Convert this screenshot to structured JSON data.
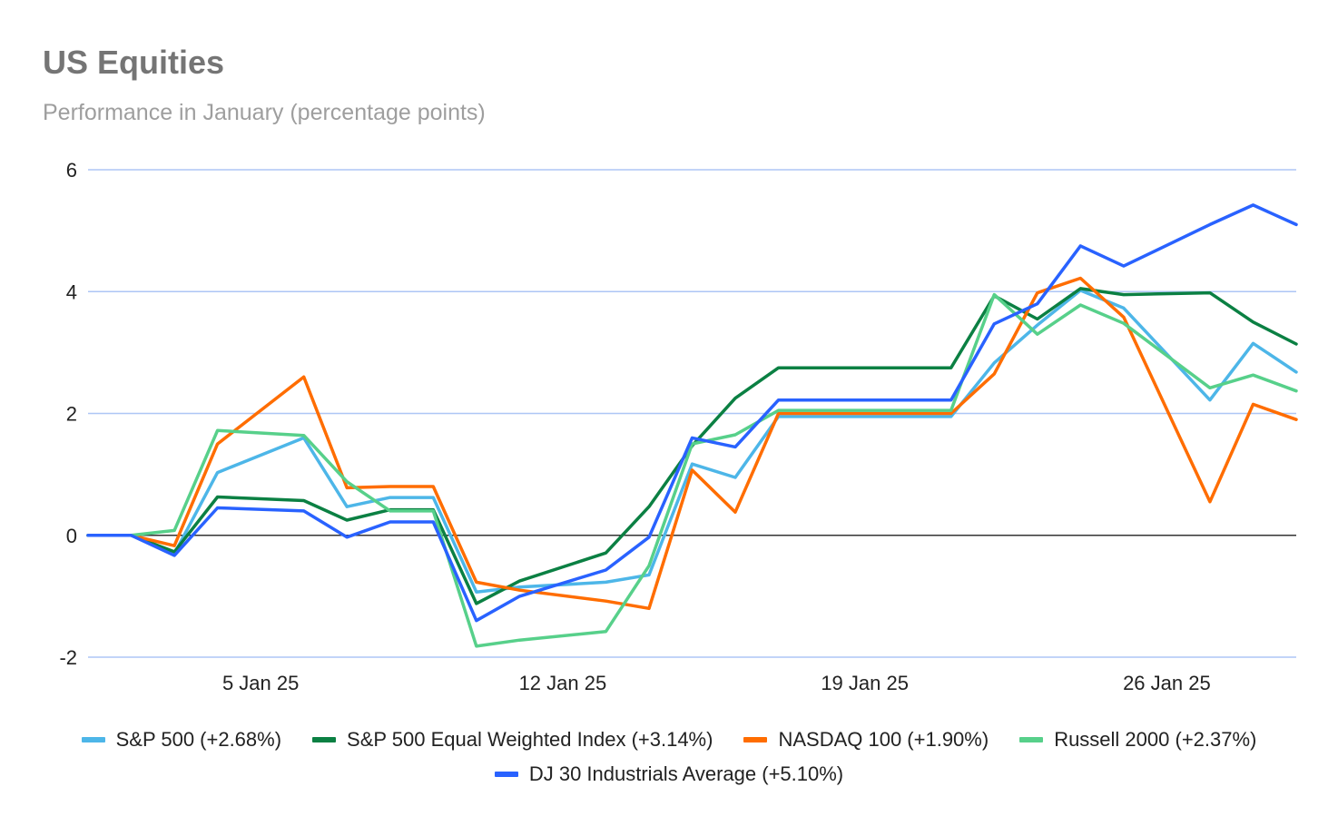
{
  "chart_data": {
    "type": "line",
    "title": "US Equities",
    "subtitle": "Performance in January (percentage points)",
    "xlabel": "",
    "ylabel": "",
    "ylim": [
      -2,
      6
    ],
    "yticks": [
      "6",
      "4",
      "2",
      "0",
      "-2"
    ],
    "x": [
      "1 Jan 25",
      "2 Jan 25",
      "3 Jan 25",
      "4 Jan 25",
      "6 Jan 25",
      "7 Jan 25",
      "8 Jan 25",
      "9 Jan 25",
      "10 Jan 25",
      "11 Jan 25",
      "13 Jan 25",
      "14 Jan 25",
      "15 Jan 25",
      "16 Jan 25",
      "17 Jan 25",
      "18 Jan 25",
      "21 Jan 25",
      "22 Jan 25",
      "23 Jan 25",
      "24 Jan 25",
      "25 Jan 25",
      "27 Jan 25",
      "28 Jan 25",
      "29 Jan 25"
    ],
    "x_day": [
      1,
      2,
      3,
      4,
      6,
      7,
      8,
      9,
      10,
      11,
      13,
      14,
      15,
      16,
      17,
      18,
      21,
      22,
      23,
      24,
      25,
      27,
      28,
      29
    ],
    "xticks": [
      {
        "label": "5 Jan 25",
        "day": 5
      },
      {
        "label": "12 Jan 25",
        "day": 12
      },
      {
        "label": "19 Jan 25",
        "day": 19
      },
      {
        "label": "26 Jan 25",
        "day": 26
      }
    ],
    "grid": true,
    "legend_position": "bottom",
    "series": [
      {
        "name": "S&P 500 (+2.68%)",
        "color": "#4db6e8",
        "values": [
          0,
          0,
          -0.3,
          1.03,
          1.6,
          0.47,
          0.62,
          0.62,
          -0.93,
          -0.85,
          -0.77,
          -0.65,
          1.17,
          0.95,
          1.95,
          1.95,
          1.95,
          2.83,
          3.45,
          4.02,
          3.73,
          2.22,
          3.15,
          2.68
        ]
      },
      {
        "name": "S&P 500 Equal Weighted Index (+3.14%)",
        "color": "#0b8043",
        "values": [
          0,
          0,
          -0.27,
          0.63,
          0.57,
          0.25,
          0.42,
          0.42,
          -1.12,
          -0.75,
          -0.29,
          0.47,
          1.47,
          2.25,
          2.75,
          2.75,
          2.75,
          3.93,
          3.55,
          4.05,
          3.95,
          3.98,
          3.5,
          3.14
        ]
      },
      {
        "name": "NASDAQ 100 (+1.90%)",
        "color": "#ff6d00",
        "values": [
          0,
          0,
          -0.17,
          1.5,
          2.6,
          0.78,
          0.8,
          0.8,
          -0.77,
          -0.9,
          -1.08,
          -1.2,
          1.07,
          0.38,
          2.0,
          2.0,
          2.0,
          2.65,
          3.98,
          4.22,
          3.58,
          0.55,
          2.15,
          1.9
        ]
      },
      {
        "name": "Russell 2000 (+2.37%)",
        "color": "#57d08a",
        "values": [
          0,
          0,
          0.08,
          1.72,
          1.64,
          0.88,
          0.4,
          0.4,
          -1.82,
          -1.72,
          -1.58,
          -0.5,
          1.5,
          1.65,
          2.05,
          2.05,
          2.05,
          3.95,
          3.3,
          3.78,
          3.48,
          2.42,
          2.63,
          2.37
        ]
      },
      {
        "name": "DJ 30 Industrials Average (+5.10%)",
        "color": "#2962ff",
        "values": [
          0,
          0,
          -0.33,
          0.45,
          0.4,
          -0.03,
          0.22,
          0.22,
          -1.4,
          -1.0,
          -0.57,
          -0.03,
          1.6,
          1.45,
          2.22,
          2.22,
          2.22,
          3.47,
          3.8,
          4.75,
          4.42,
          5.1,
          5.42,
          5.1
        ]
      }
    ]
  }
}
